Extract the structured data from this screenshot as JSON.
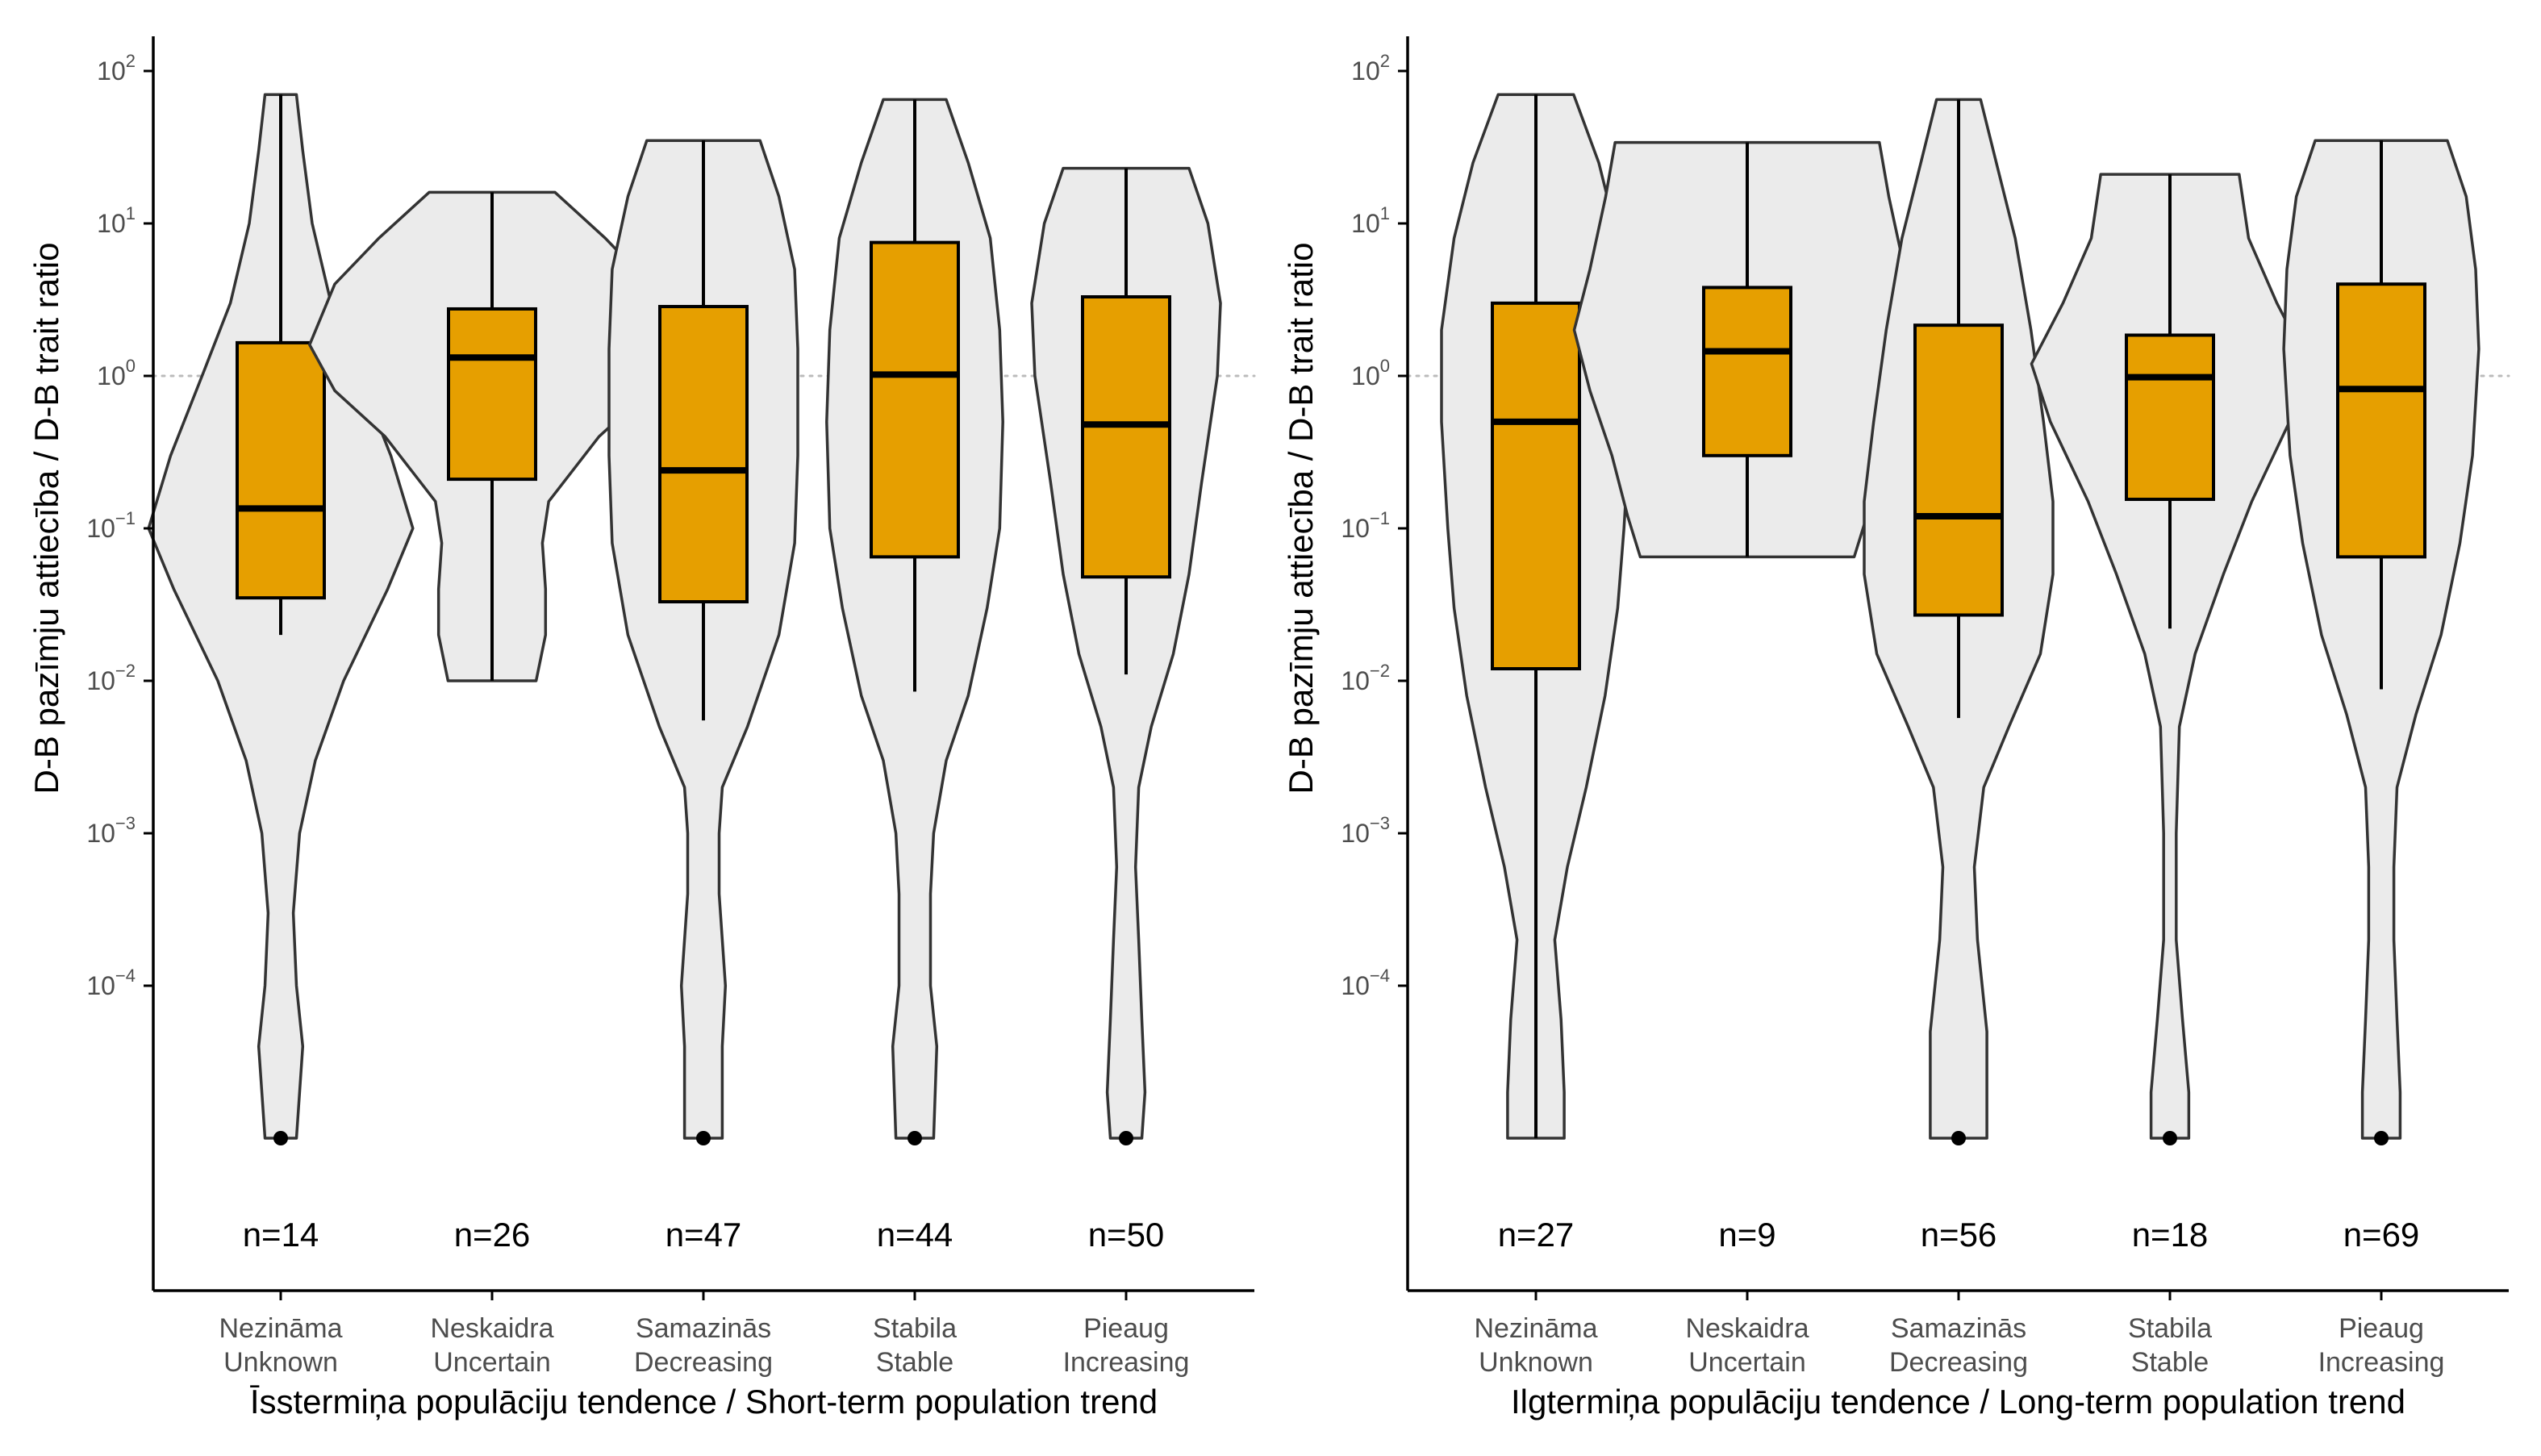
{
  "chart_data": [
    {
      "type": "violin",
      "xlabel": "Īsstermiņa populāciju tendence / Short-term population trend",
      "ylabel": "D-B pazīmju attiecība / D-B trait ratio",
      "y_scale": "log10",
      "y_ticks": [
        {
          "value": 0.0001,
          "base": "10",
          "exp": "−4"
        },
        {
          "value": 0.001,
          "base": "10",
          "exp": "−3"
        },
        {
          "value": 0.01,
          "base": "10",
          "exp": "−2"
        },
        {
          "value": 0.1,
          "base": "10",
          "exp": "−1"
        },
        {
          "value": 1,
          "base": "10",
          "exp": "0"
        },
        {
          "value": 10,
          "base": "10",
          "exp": "1"
        },
        {
          "value": 100,
          "base": "10",
          "exp": "2"
        }
      ],
      "reference_line": 1,
      "categories": [
        {
          "label_lv": "Nezināma",
          "label_en": "Unknown",
          "n_label": "n=14",
          "min": 1e-05,
          "q1": 0.035,
          "median": 0.135,
          "q3": 1.65,
          "whisker_low": 0.02,
          "whisker_high": 70,
          "max": 70,
          "outlier": 1e-05,
          "density": [
            [
              70,
              0.05
            ],
            [
              30,
              0.07
            ],
            [
              10,
              0.1
            ],
            [
              3,
              0.16
            ],
            [
              1,
              0.25
            ],
            [
              0.3,
              0.35
            ],
            [
              0.1,
              0.42
            ],
            [
              0.04,
              0.34
            ],
            [
              0.01,
              0.2
            ],
            [
              0.003,
              0.11
            ],
            [
              0.001,
              0.06
            ],
            [
              0.0003,
              0.04
            ],
            [
              0.0001,
              0.05
            ],
            [
              4e-05,
              0.07
            ],
            [
              1e-05,
              0.05
            ]
          ]
        },
        {
          "label_lv": "Neskaidra",
          "label_en": "Uncertain",
          "n_label": "n=26",
          "min": 0.01,
          "q1": 0.21,
          "median": 1.32,
          "q3": 2.75,
          "whisker_low": 0.01,
          "whisker_high": 16,
          "max": 16,
          "density": [
            [
              16,
              0.2
            ],
            [
              8,
              0.36
            ],
            [
              4,
              0.5
            ],
            [
              1.6,
              0.58
            ],
            [
              0.8,
              0.5
            ],
            [
              0.4,
              0.34
            ],
            [
              0.15,
              0.18
            ],
            [
              0.08,
              0.16
            ],
            [
              0.04,
              0.17
            ],
            [
              0.02,
              0.17
            ],
            [
              0.01,
              0.14
            ]
          ]
        },
        {
          "label_lv": "Samazinās",
          "label_en": "Decreasing",
          "n_label": "n=47",
          "min": 1e-05,
          "q1": 0.033,
          "median": 0.24,
          "q3": 2.85,
          "whisker_low": 0.0055,
          "whisker_high": 35,
          "max": 35,
          "outlier": 1e-05,
          "density": [
            [
              35,
              0.18
            ],
            [
              15,
              0.24
            ],
            [
              5,
              0.29
            ],
            [
              1.5,
              0.3
            ],
            [
              0.3,
              0.3
            ],
            [
              0.08,
              0.29
            ],
            [
              0.02,
              0.24
            ],
            [
              0.005,
              0.14
            ],
            [
              0.002,
              0.06
            ],
            [
              0.001,
              0.05
            ],
            [
              0.0004,
              0.05
            ],
            [
              0.0001,
              0.07
            ],
            [
              4e-05,
              0.06
            ],
            [
              1e-05,
              0.06
            ]
          ]
        },
        {
          "label_lv": "Stabila",
          "label_en": "Stable",
          "n_label": "n=44",
          "min": 1e-05,
          "q1": 0.065,
          "median": 1.02,
          "q3": 7.5,
          "whisker_low": 0.0085,
          "whisker_high": 65,
          "max": 65,
          "outlier": 1e-05,
          "density": [
            [
              65,
              0.1
            ],
            [
              25,
              0.17
            ],
            [
              8,
              0.24
            ],
            [
              2,
              0.27
            ],
            [
              0.5,
              0.28
            ],
            [
              0.1,
              0.27
            ],
            [
              0.03,
              0.23
            ],
            [
              0.008,
              0.17
            ],
            [
              0.003,
              0.1
            ],
            [
              0.001,
              0.06
            ],
            [
              0.0004,
              0.05
            ],
            [
              0.0001,
              0.05
            ],
            [
              4e-05,
              0.07
            ],
            [
              1e-05,
              0.06
            ]
          ]
        },
        {
          "label_lv": "Pieaug",
          "label_en": "Increasing",
          "n_label": "n=50",
          "min": 1e-05,
          "q1": 0.048,
          "median": 0.48,
          "q3": 3.3,
          "whisker_low": 0.011,
          "whisker_high": 23,
          "max": 23,
          "outlier": 1e-05,
          "density": [
            [
              23,
              0.2
            ],
            [
              10,
              0.26
            ],
            [
              3,
              0.3
            ],
            [
              1,
              0.29
            ],
            [
              0.2,
              0.24
            ],
            [
              0.05,
              0.2
            ],
            [
              0.015,
              0.15
            ],
            [
              0.005,
              0.08
            ],
            [
              0.002,
              0.04
            ],
            [
              0.0006,
              0.03
            ],
            [
              0.0002,
              0.04
            ],
            [
              6e-05,
              0.05
            ],
            [
              2e-05,
              0.06
            ],
            [
              1e-05,
              0.05
            ]
          ]
        }
      ]
    },
    {
      "type": "violin",
      "xlabel": "Ilgtermiņa populāciju tendence / Long-term population trend",
      "ylabel": "D-B pazīmju attiecība / D-B trait ratio",
      "y_scale": "log10",
      "y_ticks": [
        {
          "value": 0.0001,
          "base": "10",
          "exp": "−4"
        },
        {
          "value": 0.001,
          "base": "10",
          "exp": "−3"
        },
        {
          "value": 0.01,
          "base": "10",
          "exp": "−2"
        },
        {
          "value": 0.1,
          "base": "10",
          "exp": "−1"
        },
        {
          "value": 1,
          "base": "10",
          "exp": "0"
        },
        {
          "value": 10,
          "base": "10",
          "exp": "1"
        },
        {
          "value": 100,
          "base": "10",
          "exp": "2"
        }
      ],
      "reference_line": 1,
      "categories": [
        {
          "label_lv": "Nezināma",
          "label_en": "Unknown",
          "n_label": "n=27",
          "min": 1e-05,
          "q1": 0.012,
          "median": 0.5,
          "q3": 3.0,
          "whisker_low": 1e-05,
          "whisker_high": 70,
          "max": 70,
          "density": [
            [
              70,
              0.12
            ],
            [
              25,
              0.2
            ],
            [
              8,
              0.26
            ],
            [
              2,
              0.3
            ],
            [
              0.5,
              0.3
            ],
            [
              0.1,
              0.28
            ],
            [
              0.03,
              0.26
            ],
            [
              0.008,
              0.22
            ],
            [
              0.002,
              0.16
            ],
            [
              0.0006,
              0.1
            ],
            [
              0.0002,
              0.06
            ],
            [
              6e-05,
              0.08
            ],
            [
              2e-05,
              0.09
            ],
            [
              1e-05,
              0.09
            ]
          ]
        },
        {
          "label_lv": "Neskaidra",
          "label_en": "Uncertain",
          "n_label": "n=9",
          "min": 0.065,
          "q1": 0.3,
          "median": 1.45,
          "q3": 3.8,
          "whisker_low": 0.065,
          "whisker_high": 34,
          "max": 34,
          "density": [
            [
              34,
              0.42
            ],
            [
              15,
              0.45
            ],
            [
              5,
              0.5
            ],
            [
              2,
              0.55
            ],
            [
              0.8,
              0.5
            ],
            [
              0.3,
              0.43
            ],
            [
              0.12,
              0.38
            ],
            [
              0.065,
              0.34
            ]
          ]
        },
        {
          "label_lv": "Samazinās",
          "label_en": "Decreasing",
          "n_label": "n=56",
          "min": 1e-05,
          "q1": 0.027,
          "median": 0.12,
          "q3": 2.15,
          "whisker_low": 0.0057,
          "whisker_high": 65,
          "max": 65,
          "outlier": 1e-05,
          "density": [
            [
              65,
              0.07
            ],
            [
              25,
              0.12
            ],
            [
              8,
              0.18
            ],
            [
              2,
              0.23
            ],
            [
              0.5,
              0.27
            ],
            [
              0.15,
              0.3
            ],
            [
              0.05,
              0.3
            ],
            [
              0.015,
              0.26
            ],
            [
              0.005,
              0.16
            ],
            [
              0.002,
              0.08
            ],
            [
              0.0006,
              0.05
            ],
            [
              0.0002,
              0.06
            ],
            [
              5e-05,
              0.09
            ],
            [
              1e-05,
              0.09
            ]
          ]
        },
        {
          "label_lv": "Stabila",
          "label_en": "Stable",
          "n_label": "n=18",
          "min": 1e-05,
          "q1": 0.155,
          "median": 0.98,
          "q3": 1.85,
          "whisker_low": 0.022,
          "whisker_high": 21,
          "max": 21,
          "outlier": 1e-05,
          "density": [
            [
              21,
              0.22
            ],
            [
              8,
              0.25
            ],
            [
              3,
              0.34
            ],
            [
              1.2,
              0.44
            ],
            [
              0.5,
              0.38
            ],
            [
              0.15,
              0.26
            ],
            [
              0.05,
              0.17
            ],
            [
              0.015,
              0.08
            ],
            [
              0.005,
              0.03
            ],
            [
              0.001,
              0.02
            ],
            [
              0.0002,
              0.02
            ],
            [
              6e-05,
              0.04
            ],
            [
              2e-05,
              0.06
            ],
            [
              1e-05,
              0.06
            ]
          ]
        },
        {
          "label_lv": "Pieaug",
          "label_en": "Increasing",
          "n_label": "n=69",
          "min": 1e-05,
          "q1": 0.065,
          "median": 0.82,
          "q3": 4.0,
          "whisker_low": 0.0088,
          "whisker_high": 35,
          "max": 35,
          "outlier": 1e-05,
          "density": [
            [
              35,
              0.21
            ],
            [
              15,
              0.27
            ],
            [
              5,
              0.3
            ],
            [
              1.5,
              0.31
            ],
            [
              0.3,
              0.29
            ],
            [
              0.08,
              0.25
            ],
            [
              0.02,
              0.19
            ],
            [
              0.006,
              0.11
            ],
            [
              0.002,
              0.05
            ],
            [
              0.0006,
              0.04
            ],
            [
              0.0002,
              0.04
            ],
            [
              6e-05,
              0.05
            ],
            [
              2e-05,
              0.06
            ],
            [
              1e-05,
              0.06
            ]
          ]
        }
      ]
    }
  ],
  "colors": {
    "violin_fill": "#ebebeb",
    "violin_stroke": "#333333",
    "box_fill": "#e69f00",
    "box_stroke": "#000000",
    "reference_line": "#bbbbbb",
    "axis": "#000000",
    "tick_label": "#4d4d4d",
    "title_text": "#000000"
  }
}
